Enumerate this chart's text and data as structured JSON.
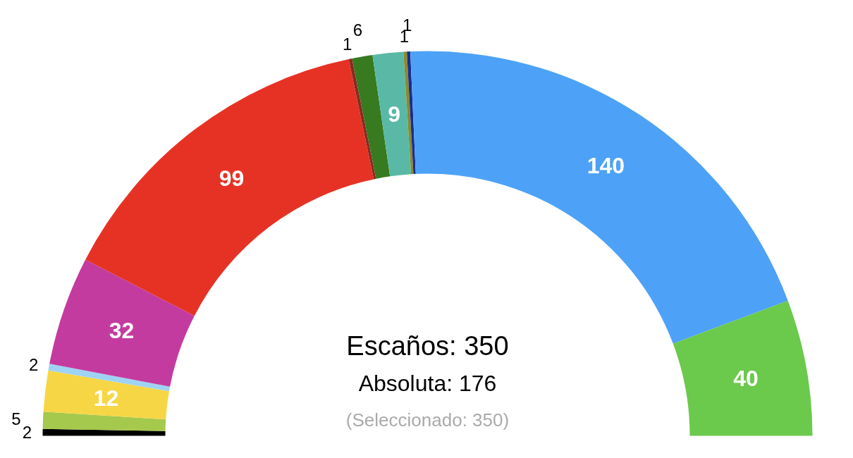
{
  "chart_data": {
    "type": "donut",
    "categories": [
      null,
      null,
      null,
      null,
      null,
      null,
      null,
      null,
      null,
      null,
      null,
      null,
      null
    ],
    "values": [
      2,
      5,
      12,
      2,
      32,
      99,
      1,
      6,
      9,
      1,
      1,
      140,
      40
    ],
    "colors": [
      "#000000",
      "#a5c94d",
      "#f7d646",
      "#9fd3f3",
      "#c43ba0",
      "#e63224",
      "#8b2a1f",
      "#377a20",
      "#59b9a6",
      "#8a8a2a",
      "#1a2d8f",
      "#4da2f7",
      "#6bc94c"
    ],
    "data_labels": true,
    "annotations": [
      "Escaños: 350",
      "Absoluta: 176",
      "(Seleccionado: 350)"
    ]
  }
}
